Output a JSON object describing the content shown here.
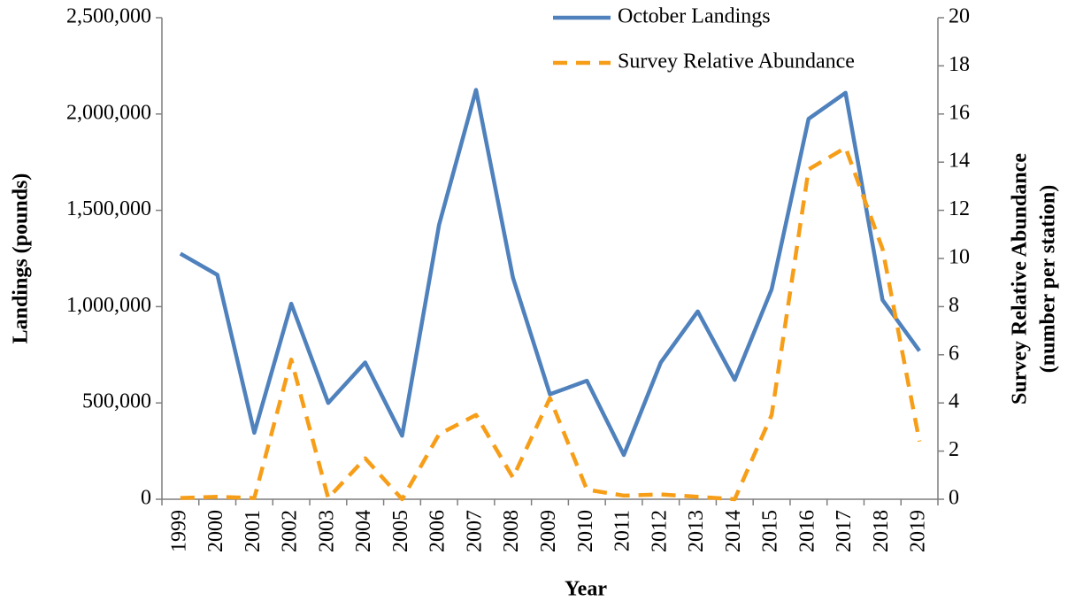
{
  "chart_data": {
    "type": "line",
    "xlabel": "Year",
    "ylabel": "Landings (pounds)",
    "y2label": [
      "Survey Relative Abundance",
      "(number per station)"
    ],
    "categories": [
      "1999",
      "2000",
      "2001",
      "2002",
      "2003",
      "2004",
      "2005",
      "2006",
      "2007",
      "2008",
      "2009",
      "2010",
      "2011",
      "2012",
      "2013",
      "2014",
      "2015",
      "2016",
      "2017",
      "2018",
      "2019"
    ],
    "series": [
      {
        "name": "October Landings",
        "color": "#4f81bd",
        "dash": false,
        "values": [
          1275000,
          1165000,
          345000,
          1015000,
          500000,
          710000,
          330000,
          1425000,
          2125000,
          1150000,
          545000,
          615000,
          230000,
          710000,
          975000,
          620000,
          1090000,
          1975000,
          2110000,
          1035000,
          770000
        ]
      },
      {
        "name": "Survey Relative Abundance",
        "color": "#f79e19",
        "dash": true,
        "axis": "y2",
        "values": [
          0.05,
          0.1,
          0.05,
          5.8,
          0.05,
          1.7,
          0,
          2.7,
          3.5,
          0.9,
          4.2,
          0.4,
          0.15,
          0.2,
          0.1,
          0,
          3.5,
          13.7,
          14.6,
          10.4,
          2.4
        ]
      }
    ],
    "ylim": [
      0,
      2500000
    ],
    "yticks": [
      0,
      {
        "value": 500000,
        "label": "500,000"
      },
      {
        "value": 1000000,
        "label": "1,000,000"
      },
      {
        "value": 1500000,
        "label": "1,500,000"
      },
      {
        "value": 2000000,
        "label": "2,000,000"
      },
      {
        "value": 2500000,
        "label": "2,500,000"
      }
    ],
    "y2lim": [
      0,
      20
    ],
    "y2ticks": [
      0,
      2,
      4,
      6,
      8,
      10,
      12,
      14,
      16,
      18,
      20
    ],
    "grid": false,
    "legend": "top"
  }
}
